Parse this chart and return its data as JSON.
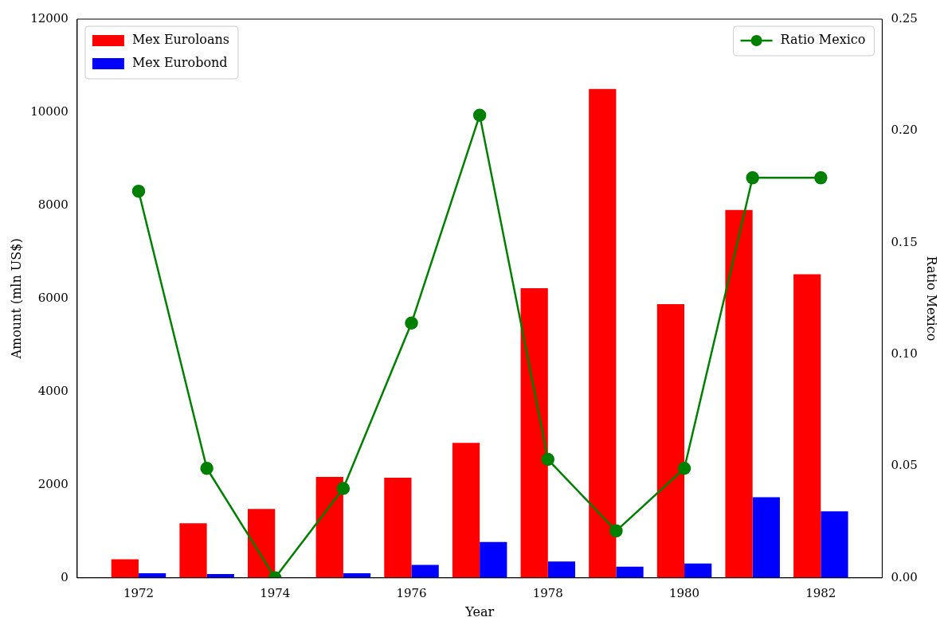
{
  "chart_data": {
    "type": "bar",
    "x": [
      1972,
      1973,
      1974,
      1975,
      1976,
      1977,
      1978,
      1979,
      1980,
      1981,
      1982
    ],
    "series": [
      {
        "name": "Mex Euroloans",
        "color": "#ff0000",
        "values": [
          400,
          1170,
          1480,
          2170,
          2150,
          2900,
          6220,
          10500,
          5880,
          7900,
          6520
        ]
      },
      {
        "name": "Mex Eurobond",
        "color": "#0000ff",
        "values": [
          100,
          80,
          0,
          100,
          280,
          770,
          350,
          240,
          310,
          1730,
          1430
        ]
      },
      {
        "name": "Ratio Mexico",
        "type": "line",
        "axis": "y2",
        "color": "#008000",
        "marker": "circle",
        "line_style": "solid",
        "values": [
          0.173,
          0.049,
          0,
          0.04,
          0.114,
          0.207,
          0.053,
          0.021,
          0.049,
          0.179,
          0.179
        ]
      }
    ],
    "xlabel": "Year",
    "ylabel": "Amount (mln US$)",
    "y2label": "Ratio Mexico",
    "xlim": [
      1971.1,
      1982.9
    ],
    "xticks": [
      1972,
      1974,
      1976,
      1978,
      1980,
      1982
    ],
    "ylim": [
      0,
      12000
    ],
    "yticks": [
      0,
      2000,
      4000,
      6000,
      8000,
      10000,
      12000
    ],
    "y2lim": [
      0,
      0.25
    ],
    "y2ticks": [
      {
        "value": 0,
        "label": "0.00"
      },
      {
        "value": 0.05,
        "label": "0.05"
      },
      {
        "value": 0.1,
        "label": "0.10"
      },
      {
        "value": 0.15,
        "label": "0.15"
      },
      {
        "value": 0.2,
        "label": "0.20"
      },
      {
        "value": 0.25,
        "label": "0.25"
      }
    ],
    "grid": false,
    "legend": "top"
  }
}
